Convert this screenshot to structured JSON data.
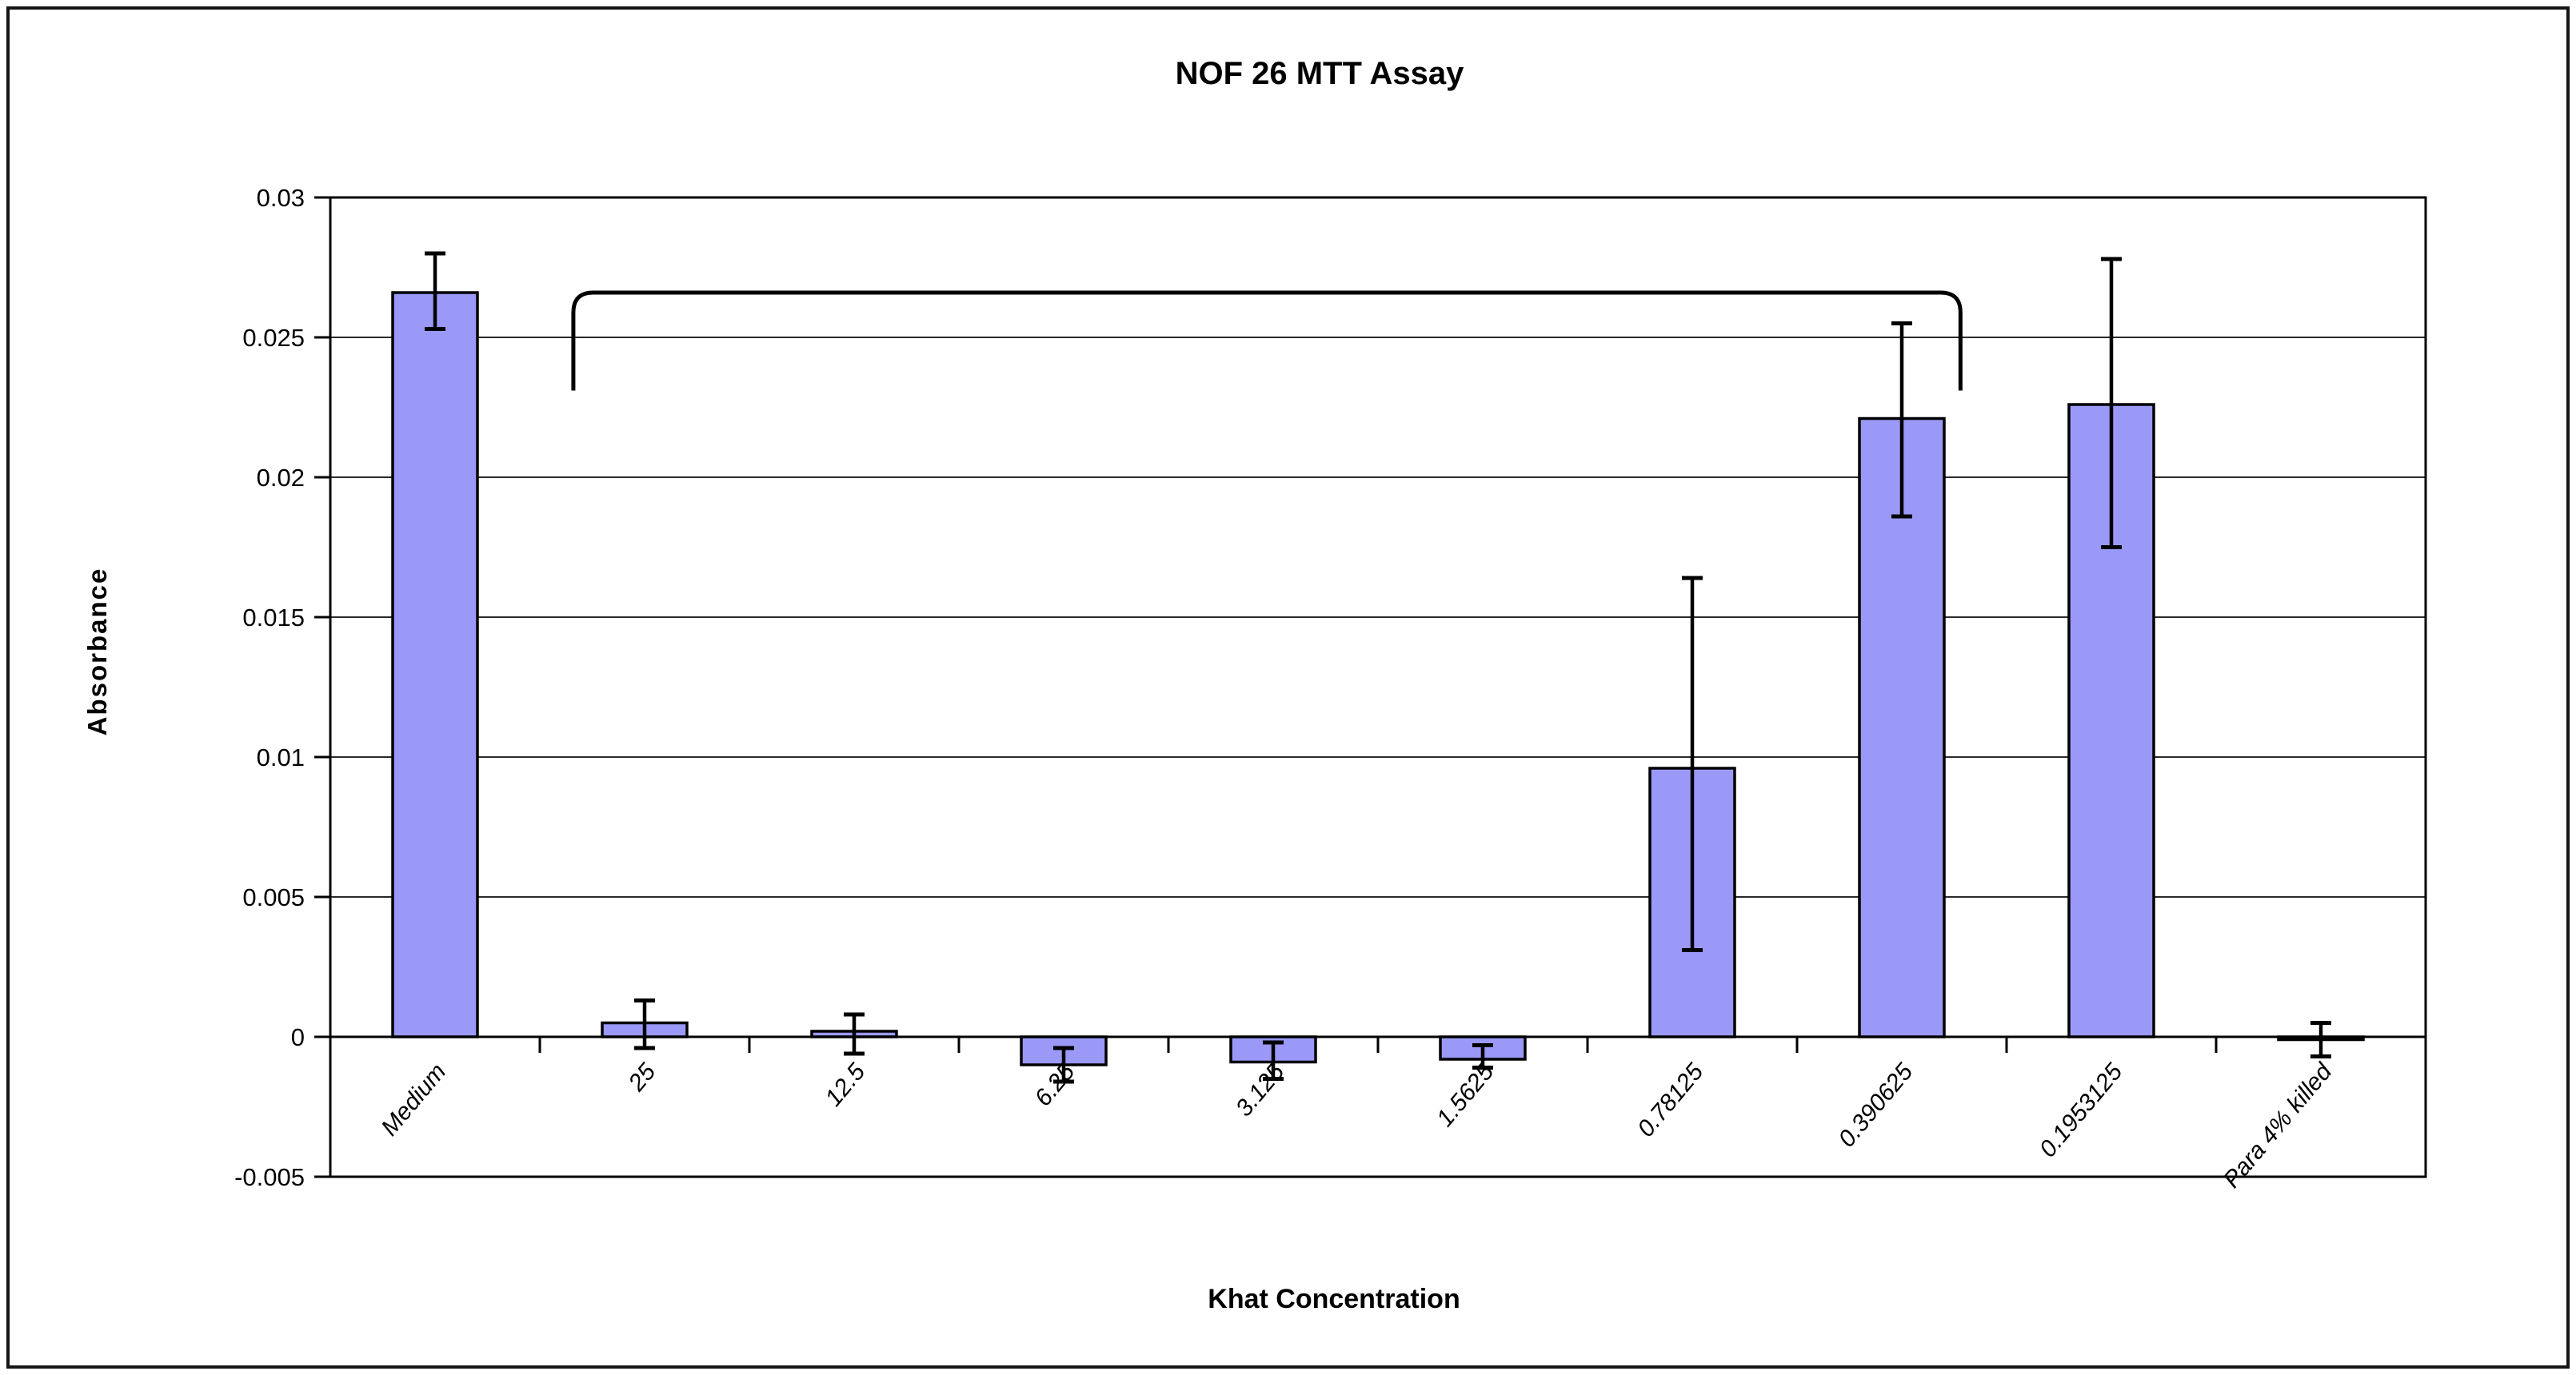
{
  "frame": {
    "border_color": "#151515",
    "background": "#ffffff"
  },
  "chart_title": "NOF 26 MTT Assay",
  "y_axis_title": "Absorbance",
  "x_axis_title": "Khat Concentration",
  "chart_data": {
    "type": "bar",
    "title": "NOF 26 MTT Assay",
    "xlabel": "Khat Concentration",
    "ylabel": "Absorbance",
    "categories": [
      "Medium",
      "25",
      "12.5",
      "6.25",
      "3.125",
      "1.5625",
      "0.78125",
      "0.390625",
      "0.1953125",
      "Para 4% killed"
    ],
    "values": [
      0.0266,
      0.0005,
      0.0002,
      -0.001,
      -0.0009,
      -0.0008,
      0.0096,
      0.0221,
      0.0226,
      -0.0001
    ],
    "error_high": [
      0.028,
      0.0013,
      0.0008,
      -0.0004,
      -0.0002,
      -0.0003,
      0.0164,
      0.0255,
      0.0278,
      0.0005
    ],
    "error_low": [
      0.0253,
      -0.0004,
      -0.0006,
      -0.0016,
      -0.0015,
      -0.0011,
      0.0031,
      0.0186,
      0.0175,
      -0.0007
    ],
    "ylim": [
      -0.005,
      0.03
    ],
    "ytick_step": 0.005,
    "ytick_labels": [
      "0.03",
      "0.025",
      "0.02",
      "0.015",
      "0.01",
      "0.005",
      "0",
      "-0.005"
    ],
    "grid": true,
    "legend": "none",
    "bar_fill": "#9A99F7",
    "bar_stroke": "#000000",
    "grid_color": "#2a2a2a",
    "significance_bracket": {
      "from_category": "25",
      "to_category": "0.390625",
      "x1_frac": 1.16,
      "x2_frac": 7.78,
      "y_top": 0.0266,
      "y_end": 0.0231
    }
  }
}
